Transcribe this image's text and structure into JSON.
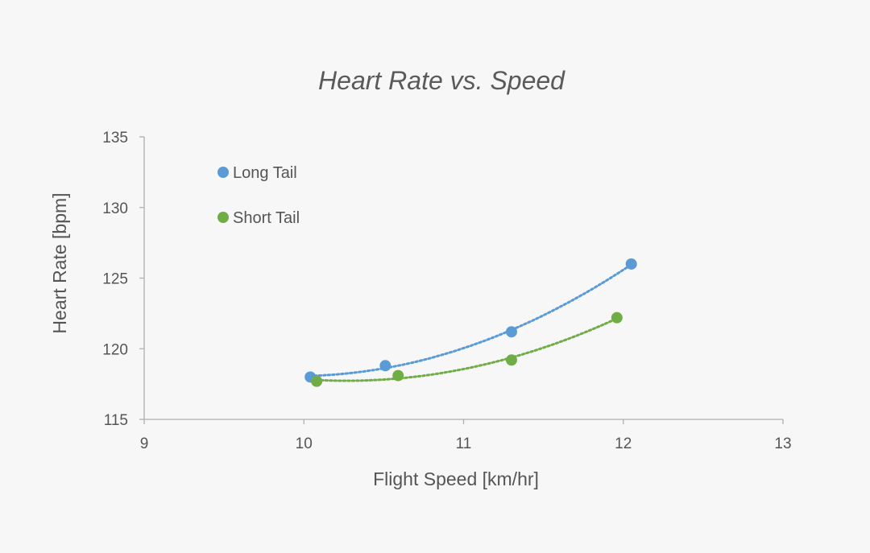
{
  "chart_data": {
    "type": "scatter",
    "title": "Heart Rate vs. Speed",
    "xlabel": "Flight Speed [km/hr]",
    "ylabel": "Heart Rate [bpm]",
    "xlim": [
      9,
      13
    ],
    "ylim": [
      115,
      135
    ],
    "xticks": [
      9,
      10,
      11,
      12,
      13
    ],
    "yticks": [
      115,
      120,
      125,
      130,
      135
    ],
    "grid": false,
    "legend_position": "top-left",
    "trendline": "polynomial order 2, dotted",
    "series": [
      {
        "name": "Long Tail",
        "color": "#5b9bd5",
        "x": [
          10.04,
          10.51,
          11.3,
          12.05
        ],
        "y": [
          118.0,
          118.8,
          121.2,
          126.0
        ]
      },
      {
        "name": "Short Tail",
        "color": "#70ad47",
        "x": [
          10.08,
          10.59,
          11.3,
          11.96
        ],
        "y": [
          117.7,
          118.1,
          119.2,
          122.2
        ]
      }
    ]
  }
}
